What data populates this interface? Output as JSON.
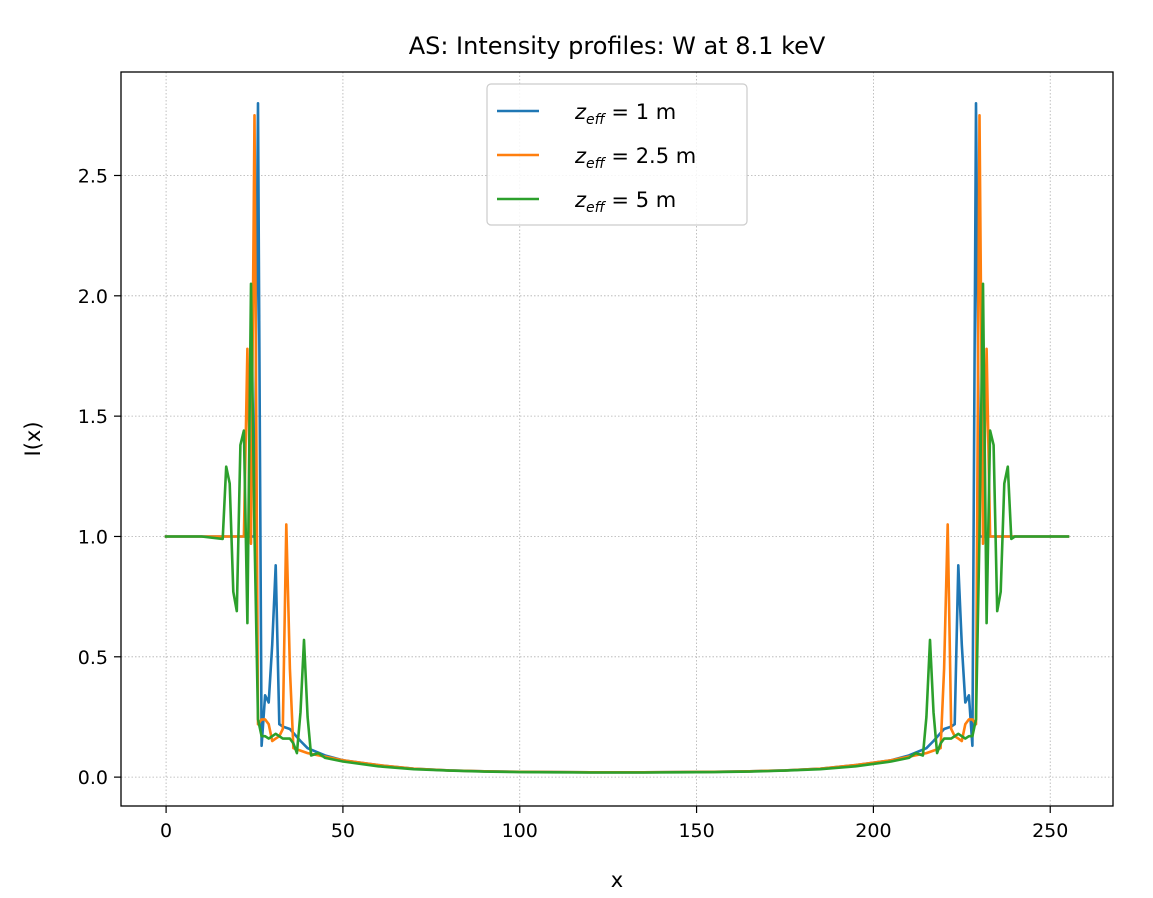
{
  "chart_data": {
    "type": "line",
    "title": "AS: Intensity profiles: W at 8.1 keV",
    "xlabel": "x",
    "ylabel": "I(x)",
    "xlim": [
      -12.75,
      267.75
    ],
    "ylim": [
      -0.12,
      2.93
    ],
    "xticks": [
      0,
      50,
      100,
      150,
      200,
      250
    ],
    "yticks": [
      0.0,
      0.5,
      1.0,
      1.5,
      2.0,
      2.5
    ],
    "xtick_labels": [
      "0",
      "50",
      "100",
      "150",
      "200",
      "250"
    ],
    "ytick_labels": [
      "0.0",
      "0.5",
      "1.0",
      "1.5",
      "2.0",
      "2.5"
    ],
    "grid": true,
    "legend_position": "upper-center",
    "series": [
      {
        "name": "z_eff = 1 m",
        "legend": {
          "pre": "z",
          "sub": "eff",
          "post": " = 1 m"
        },
        "color": "#1f77b4",
        "x": [
          0,
          10,
          20,
          24,
          25,
          26,
          27,
          28,
          29,
          30,
          31,
          32,
          33,
          35,
          38,
          40,
          45,
          50,
          60,
          70,
          80,
          90,
          100,
          110,
          120,
          127.5,
          135,
          145,
          155,
          165,
          175,
          185,
          195,
          205,
          210,
          215,
          217,
          220,
          222,
          223,
          224,
          225,
          226,
          227,
          228,
          229,
          230,
          231,
          235,
          240,
          250,
          255
        ],
        "y": [
          1.0,
          1.0,
          1.0,
          1.0,
          1.0,
          2.8,
          0.13,
          0.34,
          0.31,
          0.55,
          0.88,
          0.22,
          0.21,
          0.2,
          0.15,
          0.12,
          0.09,
          0.07,
          0.05,
          0.035,
          0.028,
          0.024,
          0.022,
          0.021,
          0.02,
          0.02,
          0.02,
          0.021,
          0.022,
          0.024,
          0.028,
          0.035,
          0.05,
          0.07,
          0.09,
          0.12,
          0.15,
          0.2,
          0.21,
          0.22,
          0.88,
          0.55,
          0.31,
          0.34,
          0.13,
          2.8,
          1.0,
          1.0,
          1.0,
          1.0,
          1.0,
          1.0
        ]
      },
      {
        "name": "z_eff = 2.5 m",
        "legend": {
          "pre": "z",
          "sub": "eff",
          "post": " = 2.5 m"
        },
        "color": "#ff7f0e",
        "x": [
          0,
          10,
          20,
          22,
          23,
          24,
          25,
          26,
          27,
          28,
          29,
          30,
          31,
          32,
          33,
          34,
          35,
          36,
          38,
          40,
          45,
          50,
          60,
          70,
          80,
          90,
          100,
          110,
          120,
          127.5,
          135,
          145,
          155,
          165,
          175,
          185,
          195,
          205,
          210,
          215,
          217,
          219,
          220,
          221,
          222,
          223,
          224,
          225,
          226,
          227,
          228,
          229,
          230,
          231,
          232,
          233,
          235,
          240,
          250,
          255
        ],
        "y": [
          1.0,
          1.0,
          1.0,
          1.0,
          1.78,
          0.97,
          2.75,
          0.22,
          0.24,
          0.24,
          0.22,
          0.15,
          0.16,
          0.17,
          0.2,
          1.05,
          0.45,
          0.12,
          0.11,
          0.1,
          0.085,
          0.07,
          0.05,
          0.035,
          0.028,
          0.024,
          0.022,
          0.021,
          0.02,
          0.02,
          0.02,
          0.021,
          0.022,
          0.024,
          0.028,
          0.035,
          0.05,
          0.07,
          0.085,
          0.1,
          0.11,
          0.12,
          0.45,
          1.05,
          0.2,
          0.17,
          0.16,
          0.15,
          0.22,
          0.24,
          0.24,
          0.22,
          2.75,
          0.97,
          1.78,
          1.0,
          1.0,
          1.0,
          1.0,
          1.0
        ]
      },
      {
        "name": "z_eff = 5 m",
        "legend": {
          "pre": "z",
          "sub": "eff",
          "post": " = 5 m"
        },
        "color": "#2ca02c",
        "x": [
          0,
          10,
          16,
          17,
          18,
          19,
          20,
          21,
          22,
          23,
          24,
          25,
          26,
          27,
          28,
          29,
          30,
          31,
          32,
          33,
          35,
          36,
          37,
          38,
          39,
          40,
          41,
          43,
          45,
          50,
          60,
          70,
          80,
          90,
          100,
          110,
          120,
          127.5,
          135,
          145,
          155,
          165,
          175,
          185,
          195,
          205,
          210,
          212,
          214,
          215,
          216,
          217,
          218,
          219,
          220,
          222,
          223,
          224,
          225,
          226,
          227,
          228,
          229,
          230,
          231,
          232,
          233,
          234,
          235,
          236,
          237,
          238,
          239,
          240,
          250,
          255
        ],
        "y": [
          1.0,
          1.0,
          0.99,
          1.29,
          1.22,
          0.77,
          0.69,
          1.38,
          1.44,
          0.64,
          2.05,
          1.01,
          0.24,
          0.17,
          0.17,
          0.16,
          0.17,
          0.18,
          0.17,
          0.16,
          0.16,
          0.14,
          0.1,
          0.27,
          0.57,
          0.25,
          0.09,
          0.1,
          0.08,
          0.065,
          0.045,
          0.033,
          0.027,
          0.023,
          0.021,
          0.02,
          0.019,
          0.019,
          0.019,
          0.02,
          0.021,
          0.023,
          0.027,
          0.033,
          0.045,
          0.065,
          0.08,
          0.1,
          0.09,
          0.25,
          0.57,
          0.27,
          0.1,
          0.14,
          0.16,
          0.16,
          0.17,
          0.18,
          0.17,
          0.16,
          0.17,
          0.17,
          0.24,
          1.01,
          2.05,
          0.64,
          1.44,
          1.38,
          0.69,
          0.77,
          1.22,
          1.29,
          0.99,
          1.0,
          1.0,
          1.0
        ]
      }
    ]
  }
}
